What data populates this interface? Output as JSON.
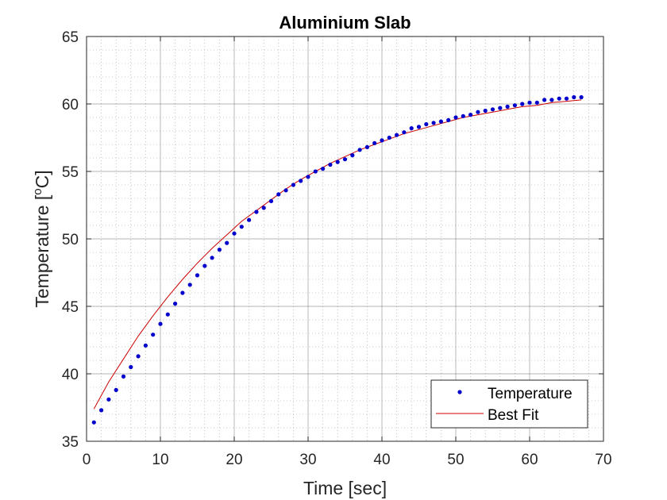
{
  "chart_data": {
    "type": "scatter",
    "title": "Aluminium Slab",
    "xlabel": "Time [sec]",
    "ylabel_main": "Temperature [",
    "ylabel_sup": "o",
    "ylabel_end": "C]",
    "xlim": [
      0,
      70
    ],
    "ylim": [
      35,
      65
    ],
    "xticks": [
      0,
      10,
      20,
      30,
      40,
      50,
      60,
      70
    ],
    "yticks": [
      35,
      40,
      45,
      50,
      55,
      60,
      65
    ],
    "grid": true,
    "minor_grid": true,
    "legend_position": "bottom-right",
    "colors": {
      "points": "#0000cc",
      "fit": "#cc0000",
      "grid_major": "#4d4d4d",
      "grid_minor": "#999999"
    },
    "series": [
      {
        "name": "Temperature",
        "type": "scatter",
        "x": [
          1,
          2,
          3,
          4,
          5,
          6,
          7,
          8,
          9,
          10,
          11,
          12,
          13,
          14,
          15,
          16,
          17,
          18,
          19,
          20,
          21,
          22,
          23,
          24,
          25,
          26,
          27,
          28,
          29,
          30,
          31,
          32,
          33,
          34,
          35,
          36,
          37,
          38,
          39,
          40,
          41,
          42,
          43,
          44,
          45,
          46,
          47,
          48,
          49,
          50,
          51,
          52,
          53,
          54,
          55,
          56,
          57,
          58,
          59,
          60,
          61,
          62,
          63,
          64,
          65,
          66,
          67
        ],
        "y": [
          36.4,
          37.3,
          38.1,
          38.8,
          39.8,
          40.5,
          41.3,
          42.1,
          42.9,
          43.7,
          44.4,
          45.2,
          46.0,
          46.6,
          47.3,
          48.0,
          48.6,
          49.2,
          49.7,
          50.4,
          50.9,
          51.4,
          52.0,
          52.3,
          52.8,
          53.3,
          53.6,
          54.0,
          54.3,
          54.6,
          55.0,
          55.2,
          55.5,
          55.7,
          55.9,
          56.2,
          56.6,
          56.8,
          57.1,
          57.3,
          57.5,
          57.7,
          57.9,
          58.2,
          58.3,
          58.5,
          58.6,
          58.7,
          58.8,
          59.0,
          59.1,
          59.2,
          59.4,
          59.5,
          59.6,
          59.7,
          59.8,
          59.9,
          60.0,
          60.1,
          60.1,
          60.3,
          60.3,
          60.4,
          60.4,
          60.5,
          60.5
        ]
      },
      {
        "name": "Best Fit",
        "type": "line",
        "x": [
          1,
          3,
          5,
          7,
          9,
          11,
          13,
          15,
          17,
          19,
          21,
          23,
          25,
          27,
          29,
          31,
          33,
          35,
          37,
          39,
          41,
          43,
          45,
          47,
          49,
          51,
          53,
          55,
          57,
          59,
          61,
          63,
          65,
          67
        ],
        "y": [
          37.4,
          39.4,
          41.1,
          42.8,
          44.3,
          45.7,
          47.0,
          48.2,
          49.3,
          50.3,
          51.3,
          52.1,
          52.9,
          53.7,
          54.4,
          55.0,
          55.6,
          56.1,
          56.6,
          57.0,
          57.4,
          57.8,
          58.1,
          58.4,
          58.7,
          59.0,
          59.2,
          59.4,
          59.6,
          59.8,
          59.9,
          60.1,
          60.2,
          60.3
        ]
      }
    ]
  }
}
